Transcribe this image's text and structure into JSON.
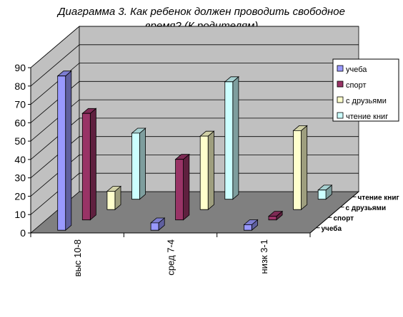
{
  "chart_data": {
    "type": "bar",
    "title_lines": [
      "Диаграмма 3. Как ребенок должен проводить свободное",
      "время? (К родителям)"
    ],
    "categories": [
      "выс 10-8",
      "сред 7-4",
      "низк 3-1"
    ],
    "series": [
      {
        "name": "учеба",
        "values": [
          84,
          4,
          3
        ],
        "color": "#9999ff"
      },
      {
        "name": "спорт",
        "values": [
          58,
          33,
          2
        ],
        "color": "#993366"
      },
      {
        "name": "с друзьями",
        "values": [
          10,
          40,
          43
        ],
        "color": "#ffffcc"
      },
      {
        "name": "чтение книг",
        "values": [
          36,
          64,
          5
        ],
        "color": "#ccffff"
      }
    ],
    "depth_labels": [
      "учеба",
      "спорт",
      "с друзьями",
      "чтение книг"
    ],
    "y_ticks": [
      0,
      10,
      20,
      30,
      40,
      50,
      60,
      70,
      80,
      90
    ],
    "ylim": [
      0,
      90
    ],
    "grid": true,
    "legend_position": "right",
    "wall_color": "#c0c0c0",
    "floor_color": "#808080"
  }
}
